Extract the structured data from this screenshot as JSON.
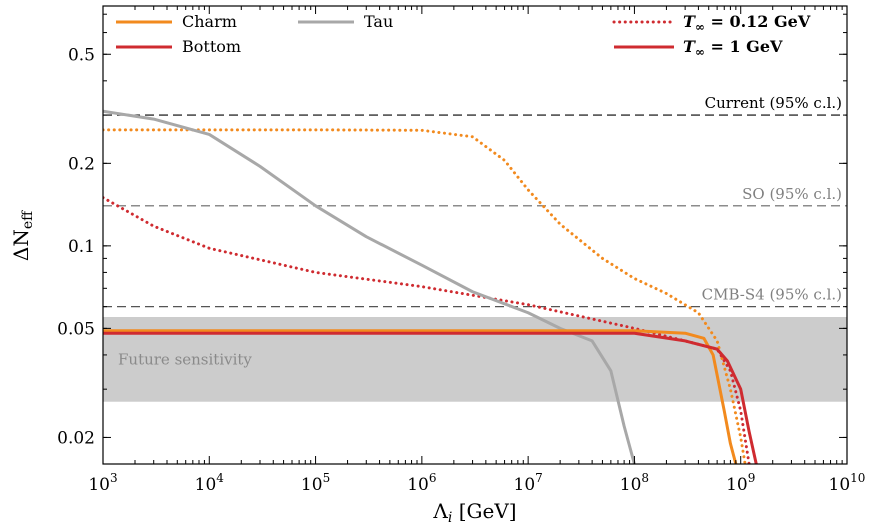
{
  "chart_data": {
    "type": "line",
    "x_scale": "log",
    "y_scale": "log",
    "xlim": [
      1000,
      10000000000
    ],
    "ylim": [
      0.016,
      0.75
    ],
    "x_ticks": [
      {
        "value": 1000,
        "base": "10",
        "exp": "3"
      },
      {
        "value": 10000,
        "base": "10",
        "exp": "4"
      },
      {
        "value": 100000,
        "base": "10",
        "exp": "5"
      },
      {
        "value": 1000000,
        "base": "10",
        "exp": "6"
      },
      {
        "value": 10000000,
        "base": "10",
        "exp": "7"
      },
      {
        "value": 100000000,
        "base": "10",
        "exp": "8"
      },
      {
        "value": 1000000000,
        "base": "10",
        "exp": "9"
      },
      {
        "value": 10000000000,
        "base": "10",
        "exp": "10"
      }
    ],
    "y_ticks": [
      {
        "value": 0.02,
        "label": "0.02"
      },
      {
        "value": 0.05,
        "label": "0.05"
      },
      {
        "value": 0.1,
        "label": "0.1"
      },
      {
        "value": 0.2,
        "label": "0.2"
      },
      {
        "value": 0.5,
        "label": "0.5"
      }
    ],
    "xlabel": {
      "main": "Λ",
      "sub": "i",
      "unit": " [GeV]"
    },
    "ylabel": {
      "main": "ΔN",
      "sub": "eff"
    },
    "band": {
      "label": "Future sensitivity",
      "ymin": 0.027,
      "ymax": 0.055,
      "color": "#cccccc"
    },
    "reference_lines": [
      {
        "label": "Current (95% c.l.)",
        "y": 0.3,
        "color": "#000000",
        "text_color": "#000000"
      },
      {
        "label": "SO (95% c.l.)",
        "y": 0.14,
        "color": "#666666",
        "text_color": "#808080"
      },
      {
        "label": "CMB-S4 (95% c.l.)",
        "y": 0.06,
        "color": "#555555",
        "text_color": "#808080"
      }
    ],
    "legend_species": [
      {
        "label": "Charm",
        "color": "#f28a1e"
      },
      {
        "label": "Bottom",
        "color": "#cf2b30"
      },
      {
        "label": "Tau",
        "color": "#a8a8a8"
      }
    ],
    "legend_temperature": [
      {
        "label_symbol": "T",
        "label_sub": "∞",
        "label_value": " = 0.12 GeV",
        "style": "dotted"
      },
      {
        "label_symbol": "T",
        "label_sub": "∞",
        "label_value": " = 1 GeV",
        "style": "solid"
      }
    ],
    "series": [
      {
        "name": "Charm",
        "temperature": "0.12 GeV",
        "style": "dotted",
        "color": "#f28a1e",
        "points": [
          [
            1000,
            0.265
          ],
          [
            10000,
            0.265
          ],
          [
            100000,
            0.265
          ],
          [
            1000000,
            0.264
          ],
          [
            3000000,
            0.25
          ],
          [
            6000000,
            0.205
          ],
          [
            10000000,
            0.16
          ],
          [
            20000000,
            0.12
          ],
          [
            50000000,
            0.09
          ],
          [
            100000000,
            0.076
          ],
          [
            200000000,
            0.067
          ],
          [
            400000000,
            0.057
          ],
          [
            600000000,
            0.045
          ],
          [
            800000000,
            0.03
          ],
          [
            1000000000,
            0.02
          ],
          [
            1100000000,
            0.016
          ]
        ]
      },
      {
        "name": "Bottom",
        "temperature": "0.12 GeV",
        "style": "dotted",
        "color": "#cf2b30",
        "points": [
          [
            1000,
            0.15
          ],
          [
            3000,
            0.118
          ],
          [
            10000,
            0.098
          ],
          [
            100000,
            0.08
          ],
          [
            1000000,
            0.071
          ],
          [
            10000000,
            0.061
          ],
          [
            100000000,
            0.05
          ],
          [
            300000000,
            0.045
          ],
          [
            600000000,
            0.042
          ],
          [
            800000000,
            0.035
          ],
          [
            1000000000,
            0.025
          ],
          [
            1200000000,
            0.016
          ]
        ]
      },
      {
        "name": "Tau",
        "temperature": "0.12 GeV",
        "style": "solid",
        "color": "#a8a8a8",
        "points": [
          [
            1000,
            0.31
          ],
          [
            3000,
            0.29
          ],
          [
            10000,
            0.255
          ],
          [
            30000,
            0.195
          ],
          [
            100000,
            0.14
          ],
          [
            300000,
            0.108
          ],
          [
            1000000,
            0.085
          ],
          [
            3000000,
            0.068
          ],
          [
            10000000,
            0.057
          ],
          [
            20000000,
            0.05
          ],
          [
            40000000,
            0.045
          ],
          [
            60000000,
            0.035
          ],
          [
            80000000,
            0.022
          ],
          [
            100000000,
            0.016
          ]
        ]
      },
      {
        "name": "Charm",
        "temperature": "1 GeV",
        "style": "solid",
        "color": "#f28a1e",
        "points": [
          [
            1000,
            0.049
          ],
          [
            100000000,
            0.049
          ],
          [
            300000000,
            0.048
          ],
          [
            450000000,
            0.046
          ],
          [
            550000000,
            0.04
          ],
          [
            700000000,
            0.025
          ],
          [
            800000000,
            0.019
          ],
          [
            900000000,
            0.016
          ]
        ]
      },
      {
        "name": "Bottom",
        "temperature": "1 GeV",
        "style": "solid",
        "color": "#cf2b30",
        "points": [
          [
            1000,
            0.048
          ],
          [
            100000000,
            0.048
          ],
          [
            300000000,
            0.045
          ],
          [
            600000000,
            0.042
          ],
          [
            750000000,
            0.038
          ],
          [
            1000000000,
            0.03
          ],
          [
            1200000000,
            0.021
          ],
          [
            1400000000,
            0.016
          ]
        ]
      }
    ]
  }
}
